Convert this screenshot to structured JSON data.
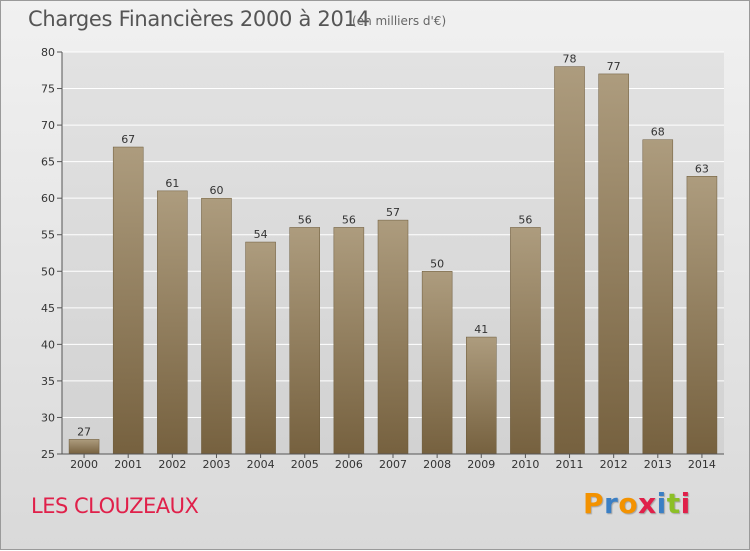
{
  "header": {
    "title": "Charges Financières 2000 à 2014",
    "subtitle": "(en milliers d'€)"
  },
  "footer": {
    "place": "LES CLOUZEAUX",
    "logo_letters": [
      "P",
      "r",
      "o",
      "x",
      "i",
      "t",
      "i"
    ],
    "logo_colors": [
      "#f39200",
      "#3b7fc4",
      "#f39200",
      "#e0204a",
      "#3b7fc4",
      "#8cbf26",
      "#e0204a"
    ]
  },
  "colors": {
    "bar_top": "#ad9c7e",
    "bar_bottom": "#76613f",
    "axis": "#555555",
    "grid": "#ffffff"
  },
  "chart_data": {
    "type": "bar",
    "title": "Charges Financières 2000 à 2014",
    "subtitle": "(en milliers d'€)",
    "xlabel": "",
    "ylabel": "",
    "categories": [
      "2000",
      "2001",
      "2002",
      "2003",
      "2004",
      "2005",
      "2006",
      "2007",
      "2008",
      "2009",
      "2010",
      "2011",
      "2012",
      "2013",
      "2014"
    ],
    "values": [
      27,
      67,
      61,
      60,
      54,
      56,
      56,
      57,
      50,
      41,
      56,
      78,
      77,
      68,
      63
    ],
    "ylim": [
      25,
      80
    ],
    "yticks": [
      25,
      30,
      35,
      40,
      45,
      50,
      55,
      60,
      65,
      70,
      75,
      80
    ],
    "grid": true,
    "data_labels": true
  }
}
